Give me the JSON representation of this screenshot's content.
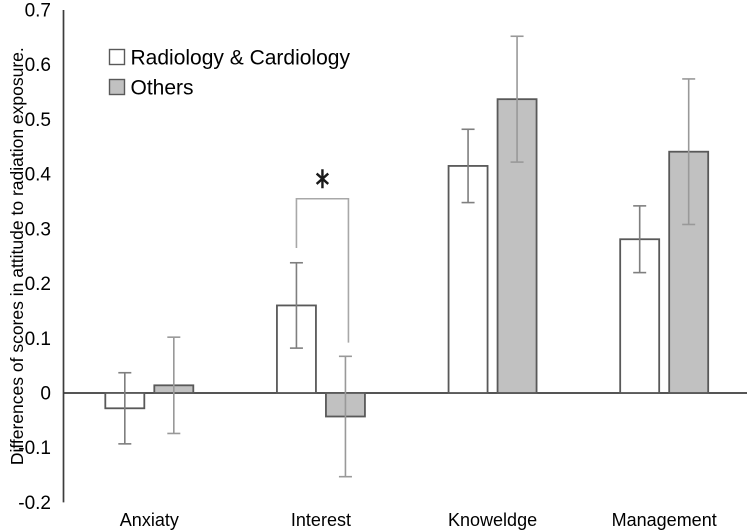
{
  "chart_data": {
    "type": "bar",
    "title": "",
    "xlabel": "",
    "ylabel": "Differences of scores in attitude to radiation exposure.",
    "categories": [
      "Anxiaty",
      "Interest",
      "Knoweldge",
      "Management"
    ],
    "series": [
      {
        "name": "Radiology & Cardiology",
        "fill": "#ffffff",
        "stroke": "#595959",
        "error_color": "#7f7f7f",
        "values": [
          -0.028,
          0.16,
          0.415,
          0.281
        ],
        "errors": [
          0.065,
          0.078,
          0.067,
          0.061
        ]
      },
      {
        "name": "Others",
        "fill": "#c1c1c1",
        "stroke": "#595959",
        "error_color": "#999999",
        "values": [
          0.014,
          -0.043,
          0.537,
          0.441
        ],
        "errors": [
          0.088,
          0.11,
          0.115,
          0.133
        ]
      }
    ],
    "ylim": [
      -0.2,
      0.7
    ],
    "ytick_step": 0.1,
    "ytick_labels": [
      "0.7",
      "0.6",
      "0.5",
      "0.4",
      "0.3",
      "0.2",
      "0.1",
      "0",
      "-0.1",
      "-0.2"
    ],
    "grid": false,
    "legend_position": "top-left",
    "axis_color": "#3d3d3d",
    "bracket_color": "#a8a8a8",
    "significance": {
      "symbol": "*",
      "category": "Interest",
      "between": [
        "Radiology & Cardiology",
        "Others"
      ],
      "bracket_y": 0.355,
      "left_end_y": 0.265,
      "right_end_y": 0.092
    }
  }
}
